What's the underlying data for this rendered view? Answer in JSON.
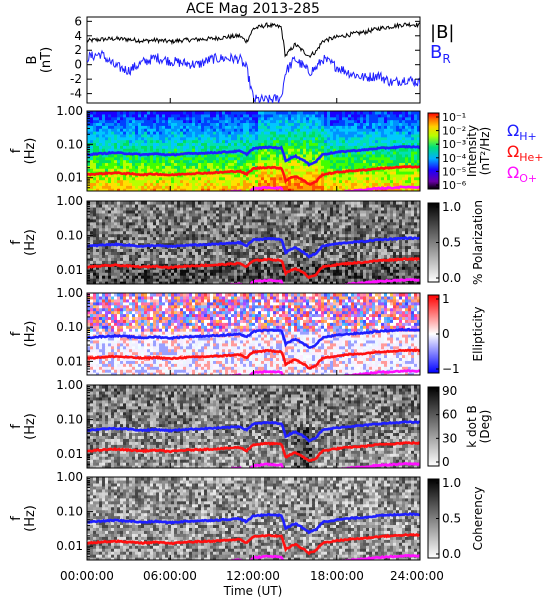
{
  "title": "ACE Mag 2013-285",
  "xaxis": {
    "label": "Time (UT)",
    "ticks": [
      "00:00:00",
      "06:00:00",
      "12:00:00",
      "18:00:00",
      "24:00:00"
    ]
  },
  "legend": {
    "b_mag": "|B|",
    "b_r_main": "B",
    "b_r_sub": "R",
    "cyclotron": [
      {
        "main": "Ω",
        "sub": "H+",
        "color": "#1f1fff"
      },
      {
        "main": "Ω",
        "sub": "He+",
        "color": "#ff1010"
      },
      {
        "main": "Ω",
        "sub": "O+",
        "color": "#ff10ff"
      }
    ]
  },
  "colors": {
    "b_mag": "#000000",
    "b_r": "#1f1fff",
    "h": "#1f1fff",
    "he": "#ff1010",
    "o": "#ff10ff"
  },
  "chart_data": [
    {
      "type": "line",
      "ylabel_main": "B",
      "ylabel_unit": "(nT)",
      "yticks": [
        "-4",
        "-2",
        "0",
        "2",
        "4",
        "6"
      ],
      "ylim": [
        -5.3,
        6.6
      ],
      "x_hours": [
        0,
        1,
        2,
        3,
        4,
        5,
        6,
        7,
        8,
        9,
        10,
        11,
        11.5,
        12,
        13,
        14,
        14.3,
        15,
        16,
        16.5,
        17,
        18,
        19,
        20,
        21,
        22,
        23,
        24
      ],
      "series": [
        {
          "name": "|B|",
          "values": [
            3.3,
            3.5,
            3.6,
            3.5,
            3.3,
            3.4,
            3.2,
            3.4,
            3.5,
            3.6,
            3.8,
            4.0,
            3.2,
            5.0,
            5.5,
            5.2,
            1.2,
            2.8,
            1.2,
            1.8,
            3.3,
            3.8,
            4.2,
            4.5,
            5.0,
            5.3,
            5.6,
            5.5
          ]
        },
        {
          "name": "B_R",
          "values": [
            1.0,
            1.5,
            -0.2,
            -0.8,
            0.3,
            1.0,
            0.5,
            0.2,
            0.0,
            0.8,
            0.9,
            0.8,
            -0.5,
            -4.8,
            -4.9,
            -4.6,
            -1.0,
            0.8,
            -1.0,
            -0.5,
            0.8,
            -0.3,
            -1.2,
            -1.8,
            -1.5,
            -2.5,
            -2.0,
            -2.5
          ]
        }
      ]
    },
    {
      "type": "heatmap",
      "ylabel_main": "f",
      "ylabel_unit": "(Hz)",
      "yticks": [
        "0.01",
        "0.10",
        "1.00"
      ],
      "ylim": [
        0.004,
        1.0
      ],
      "yscale": "log",
      "colorbar": {
        "scale": "rainbow",
        "label_lines": [
          "Intensity",
          "(nT²/Hz)"
        ],
        "ticks": [
          "10⁻¹",
          "10⁻²",
          "10⁻³",
          "10⁻⁴",
          "10⁻⁵",
          "10⁻⁶"
        ]
      }
    },
    {
      "type": "heatmap",
      "ylabel_main": "f",
      "ylabel_unit": "(Hz)",
      "yticks": [
        "0.01",
        "0.10",
        "1.00"
      ],
      "ylim": [
        0.004,
        1.0
      ],
      "yscale": "log",
      "colorbar": {
        "scale": "gray",
        "label_lines": [
          "% Polarization"
        ],
        "ticks": [
          "1.0",
          "0.5",
          "0.0"
        ]
      }
    },
    {
      "type": "heatmap",
      "ylabel_main": "f",
      "ylabel_unit": "(Hz)",
      "yticks": [
        "0.01",
        "0.10",
        "1.00"
      ],
      "ylim": [
        0.004,
        1.0
      ],
      "yscale": "log",
      "colorbar": {
        "scale": "bwr",
        "label_lines": [
          "Ellipticity"
        ],
        "ticks": [
          "1",
          "0",
          "−1"
        ]
      }
    },
    {
      "type": "heatmap",
      "ylabel_main": "f",
      "ylabel_unit": "(Hz)",
      "yticks": [
        "0.01",
        "0.10",
        "1.00"
      ],
      "ylim": [
        0.004,
        1.0
      ],
      "yscale": "log",
      "colorbar": {
        "scale": "gray",
        "label_lines": [
          "k dot B",
          "(Deg)"
        ],
        "ticks": [
          "90",
          "60",
          "30",
          "0"
        ]
      }
    },
    {
      "type": "heatmap",
      "ylabel_main": "f",
      "ylabel_unit": "(Hz)",
      "yticks": [
        "0.01",
        "0.10",
        "1.00"
      ],
      "ylim": [
        0.004,
        1.0
      ],
      "yscale": "log",
      "colorbar": {
        "scale": "gray",
        "label_lines": [
          "Coherency"
        ],
        "ticks": [
          "1.0",
          "0.5",
          "0.0"
        ]
      }
    }
  ],
  "gyrofrequency_lines": {
    "x_hours": [
      0,
      1,
      2,
      3,
      4,
      5,
      6,
      7,
      8,
      9,
      10,
      11,
      11.5,
      12,
      13,
      14,
      14.3,
      15,
      16,
      16.5,
      17,
      18,
      19,
      20,
      21,
      22,
      23,
      24
    ],
    "h_plus_hz": [
      0.049,
      0.053,
      0.056,
      0.053,
      0.049,
      0.052,
      0.048,
      0.052,
      0.054,
      0.056,
      0.059,
      0.063,
      0.05,
      0.075,
      0.082,
      0.078,
      0.032,
      0.045,
      0.025,
      0.03,
      0.05,
      0.058,
      0.064,
      0.068,
      0.076,
      0.08,
      0.085,
      0.083
    ],
    "he_plus_hz": [
      0.0124,
      0.0132,
      0.014,
      0.0132,
      0.0124,
      0.013,
      0.012,
      0.013,
      0.0136,
      0.014,
      0.0148,
      0.0158,
      0.0125,
      0.0188,
      0.0205,
      0.0195,
      0.008,
      0.0113,
      0.0063,
      0.0075,
      0.0125,
      0.0145,
      0.016,
      0.017,
      0.019,
      0.02,
      0.0213,
      0.0208
    ],
    "o_plus_hz": [
      0.0031,
      0.0033,
      0.0035,
      0.0033,
      0.0031,
      0.0033,
      0.003,
      0.0033,
      0.0034,
      0.0035,
      0.0037,
      0.004,
      0.0031,
      0.0047,
      0.0051,
      0.0049,
      0.002,
      0.0028,
      0.0016,
      0.0019,
      0.0031,
      0.0036,
      0.004,
      0.0043,
      0.0048,
      0.005,
      0.0053,
      0.0052
    ]
  }
}
